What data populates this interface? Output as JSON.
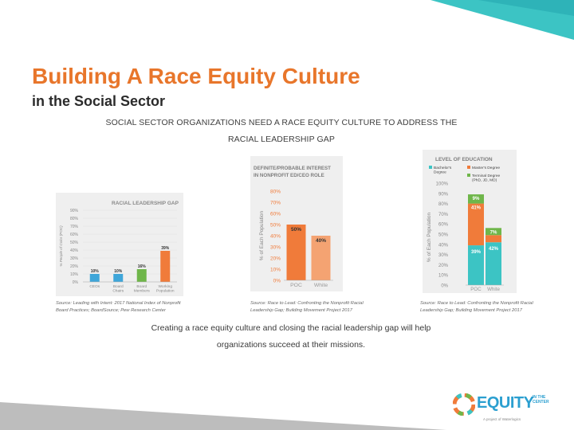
{
  "title": "Building A Race Equity Culture",
  "subtitle": "in the Social Sector",
  "headline": "SOCIAL SECTOR ORGANIZATIONS NEED A RACE EQUITY CULTURE TO ADDRESS THE RACIAL LEADERSHIP GAP",
  "conclusion": "Creating a race equity culture and closing the racial leadership gap will help organizations succeed at their missions.",
  "sources": [
    "Source: Leading with Intent: 2017 National Index of Nonprofit Board Practices; BoardSource; Pew Research Center",
    "Source: Race to Lead: Confronting the Nonprofit Racial Leadership Gap; Building Movement Project 2017",
    "Source: Race to Lead: Confronting the Nonprofit Racial Leadership Gap; Building Movement Project 2017"
  ],
  "logo": {
    "name": "EQUITY",
    "suffix": "IN THE CENTER",
    "tagline": "A project of Waterlogics"
  },
  "colors": {
    "accent": "#e8762b",
    "blue": "#3fa6d9",
    "green": "#6fb64a",
    "teal": "#3cc4c4",
    "orange": "#f07b3a"
  },
  "chart_data": [
    {
      "type": "bar",
      "title": "RACIAL LEADERSHIP GAP",
      "ylabel": "% People of Color (POC)",
      "ylim": [
        0,
        90
      ],
      "yticks": [
        "0%",
        "10%",
        "20%",
        "30%",
        "40%",
        "50%",
        "60%",
        "70%",
        "80%",
        "90%"
      ],
      "categories": [
        "CEOs",
        "Board Chairs",
        "Board Members",
        "Working Population"
      ],
      "values": [
        10,
        10,
        16,
        39
      ],
      "labels": [
        "10%",
        "10%",
        "16%",
        "39%"
      ],
      "colors": [
        "#3fa6d9",
        "#3fa6d9",
        "#6fb64a",
        "#f07b3a"
      ]
    },
    {
      "type": "bar",
      "title": "DEFINITE/PROBABLE INTEREST IN NONPROFIT ED/CEO ROLE",
      "ylabel": "% of Each Population",
      "ylim": [
        0,
        80
      ],
      "yticks": [
        "0%",
        "10%",
        "20%",
        "30%",
        "40%",
        "50%",
        "60%",
        "70%",
        "80%"
      ],
      "categories": [
        "POC",
        "White"
      ],
      "values": [
        50,
        40
      ],
      "labels": [
        "50%",
        "40%"
      ]
    },
    {
      "type": "bar",
      "title": "LEVEL OF EDUCATION",
      "ylabel": "% of Each Population",
      "ylim": [
        0,
        100
      ],
      "yticks": [
        "0%",
        "10%",
        "20%",
        "30%",
        "40%",
        "50%",
        "60%",
        "70%",
        "80%",
        "90%",
        "100%"
      ],
      "categories": [
        "POC",
        "White"
      ],
      "legend": [
        "Bachelor's Degree",
        "Master's Degree",
        "Terminal Degree (PhD, JD, MD)"
      ],
      "legend_position": "top",
      "series": [
        {
          "name": "Bachelor's Degree",
          "values": [
            39,
            42
          ],
          "labels": [
            "39%",
            "42%"
          ],
          "color": "#3cc4c4"
        },
        {
          "name": "Master's Degree",
          "values": [
            41,
            7
          ],
          "labels": [
            "41%",
            ""
          ],
          "color": "#f07b3a"
        },
        {
          "name": "Terminal Degree (PhD, JD, MD)",
          "values": [
            9,
            7
          ],
          "labels": [
            "9%",
            "7%"
          ],
          "color": "#6fb64a"
        }
      ]
    }
  ]
}
